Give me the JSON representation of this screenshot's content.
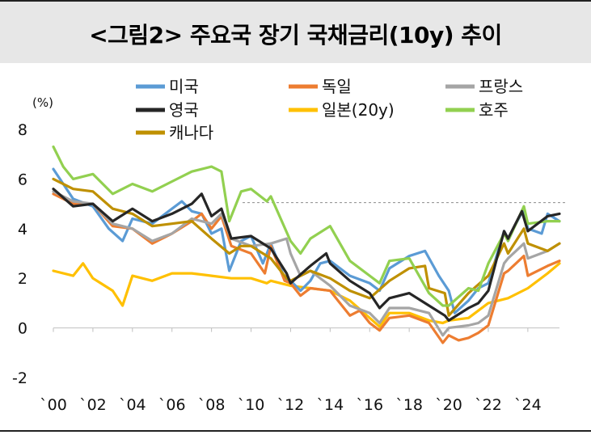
{
  "title": "<그림2> 주요국 장기 국채금리(10y) 추이",
  "chart_data": {
    "type": "line",
    "unit_label": "(%)",
    "x_tick_labels": [
      "`00",
      "`02",
      "`04",
      "`06",
      "`08",
      "`10",
      "`12",
      "`14",
      "`16",
      "`18",
      "`20",
      "`22",
      "`24"
    ],
    "x_range": [
      2000,
      2025.6
    ],
    "y_ticks": [
      8,
      6,
      4,
      2,
      0,
      -2
    ],
    "ylim": [
      -2,
      8
    ],
    "reference_line": 5.05,
    "legend_placement": "top",
    "grid": false,
    "series": [
      {
        "name": "미국",
        "color": "#5b9bd5",
        "x": [
          2000,
          2001,
          2002,
          2002.8,
          2003.5,
          2004,
          2005,
          2006,
          2006.5,
          2007,
          2007.5,
          2008,
          2008.5,
          2008.9,
          2009.5,
          2010,
          2010.6,
          2011,
          2011.7,
          2012,
          2012.5,
          2013,
          2013.5,
          2014,
          2015,
          2016,
          2016.5,
          2017,
          2018,
          2018.8,
          2019.5,
          2020,
          2020.3,
          2021,
          2021.5,
          2022,
          2022.8,
          2023,
          2023.8,
          2024,
          2024.7,
          2025,
          2025.6
        ],
        "y": [
          6.4,
          5.2,
          4.9,
          4.0,
          3.5,
          4.4,
          4.2,
          4.8,
          5.1,
          4.7,
          4.6,
          3.8,
          4.0,
          2.3,
          3.5,
          3.7,
          2.6,
          3.4,
          2.0,
          1.9,
          1.5,
          1.9,
          2.6,
          2.7,
          2.1,
          1.8,
          1.5,
          2.4,
          2.9,
          3.1,
          2.1,
          1.5,
          0.6,
          1.1,
          1.6,
          1.8,
          3.9,
          3.6,
          4.8,
          4.0,
          3.8,
          4.6,
          4.3
        ]
      },
      {
        "name": "독일",
        "color": "#ed7d31",
        "x": [
          2000,
          2001,
          2002,
          2003,
          2004,
          2005,
          2006,
          2007,
          2007.5,
          2008,
          2008.5,
          2009,
          2010,
          2010.7,
          2011,
          2011.7,
          2012,
          2012.5,
          2013,
          2014,
          2015,
          2015.5,
          2016,
          2016.5,
          2017,
          2018,
          2019,
          2019.7,
          2020,
          2020.5,
          2021,
          2021.5,
          2022,
          2022.8,
          2023,
          2023.8,
          2024,
          2025,
          2025.6
        ],
        "y": [
          5.4,
          5.0,
          5.0,
          4.1,
          4.0,
          3.4,
          3.8,
          4.3,
          4.6,
          4.0,
          4.5,
          3.3,
          3.0,
          2.2,
          3.3,
          1.9,
          1.8,
          1.3,
          1.6,
          1.5,
          0.5,
          0.7,
          0.2,
          -0.1,
          0.4,
          0.5,
          0.2,
          -0.6,
          -0.3,
          -0.5,
          -0.4,
          -0.2,
          0.1,
          2.2,
          2.3,
          2.9,
          2.1,
          2.5,
          2.7
        ]
      },
      {
        "name": "프랑스",
        "color": "#a5a5a5",
        "x": [
          2000,
          2001,
          2002,
          2003,
          2004,
          2005,
          2006,
          2007,
          2008,
          2008.5,
          2009,
          2010,
          2011,
          2011.8,
          2012,
          2012.5,
          2013,
          2014,
          2015,
          2016,
          2016.5,
          2017,
          2018,
          2019,
          2019.7,
          2020,
          2021,
          2021.5,
          2022,
          2022.8,
          2023,
          2023.8,
          2024,
          2025,
          2025.6
        ],
        "y": [
          5.5,
          5.1,
          5.0,
          4.2,
          4.0,
          3.5,
          3.8,
          4.4,
          4.2,
          4.6,
          3.6,
          3.3,
          3.4,
          3.6,
          3.0,
          2.1,
          2.3,
          1.7,
          0.9,
          0.6,
          0.2,
          0.8,
          0.8,
          0.6,
          -0.3,
          0.0,
          0.1,
          0.2,
          0.5,
          2.6,
          2.8,
          3.4,
          2.8,
          3.1,
          3.4
        ]
      },
      {
        "name": "영국",
        "color": "#262626",
        "x": [
          2000,
          2001,
          2002,
          2003,
          2004,
          2005,
          2006,
          2007,
          2007.5,
          2008,
          2008.5,
          2009,
          2010,
          2011,
          2011.8,
          2012,
          2013,
          2013.8,
          2014,
          2015,
          2016,
          2016.5,
          2017,
          2018,
          2019,
          2019.8,
          2020,
          2021,
          2021.5,
          2022,
          2022.8,
          2023,
          2023.7,
          2024,
          2025,
          2025.6
        ],
        "y": [
          5.6,
          4.9,
          5.0,
          4.3,
          4.8,
          4.3,
          4.6,
          5.0,
          5.4,
          4.5,
          4.8,
          3.6,
          3.7,
          3.2,
          2.2,
          1.8,
          2.5,
          3.0,
          2.6,
          1.9,
          1.4,
          0.8,
          1.2,
          1.4,
          0.9,
          0.5,
          0.3,
          0.8,
          1.0,
          1.5,
          3.9,
          3.6,
          4.7,
          3.9,
          4.5,
          4.6
        ]
      },
      {
        "name": "일본(20y)",
        "color": "#ffc000",
        "x": [
          2000,
          2001,
          2001.5,
          2002,
          2003,
          2003.5,
          2004,
          2005,
          2006,
          2007,
          2008,
          2009,
          2010,
          2010.8,
          2011,
          2012,
          2013,
          2014,
          2015,
          2016,
          2016.5,
          2017,
          2018,
          2019,
          2019.7,
          2020,
          2021,
          2022,
          2023,
          2024,
          2025,
          2025.6
        ],
        "y": [
          2.3,
          2.1,
          2.6,
          2.0,
          1.5,
          0.9,
          2.1,
          1.9,
          2.2,
          2.2,
          2.1,
          2.0,
          2.0,
          1.8,
          1.9,
          1.7,
          1.6,
          1.5,
          1.1,
          0.4,
          0.05,
          0.6,
          0.6,
          0.3,
          0.2,
          0.3,
          0.4,
          1.0,
          1.2,
          1.6,
          2.2,
          2.6
        ]
      },
      {
        "name": "호주",
        "color": "#92d050",
        "x": [
          2000,
          2000.5,
          2001,
          2002,
          2003,
          2004,
          2005,
          2006,
          2007,
          2008,
          2008.5,
          2008.9,
          2009.5,
          2010,
          2010.8,
          2011,
          2012,
          2012.5,
          2013,
          2014,
          2015,
          2016,
          2016.5,
          2017,
          2018,
          2019,
          2019.7,
          2020,
          2021,
          2021.5,
          2022,
          2022.8,
          2023,
          2023.8,
          2024,
          2025,
          2025.6
        ],
        "y": [
          7.3,
          6.5,
          6.0,
          6.2,
          5.4,
          5.8,
          5.5,
          5.9,
          6.3,
          6.5,
          6.3,
          4.3,
          5.5,
          5.6,
          5.1,
          5.3,
          3.5,
          3.0,
          3.6,
          4.1,
          2.7,
          2.1,
          1.8,
          2.7,
          2.8,
          1.4,
          0.9,
          0.9,
          1.6,
          1.5,
          2.6,
          3.8,
          3.5,
          4.9,
          4.2,
          4.3,
          4.3
        ]
      },
      {
        "name": "캐나다",
        "color": "#bf9000",
        "x": [
          2000,
          2001,
          2002,
          2003,
          2004,
          2005,
          2006,
          2007,
          2008,
          2008.9,
          2009.5,
          2010,
          2011,
          2011.8,
          2012,
          2013,
          2014,
          2015,
          2016,
          2017,
          2018,
          2018.8,
          2019,
          2019.8,
          2020,
          2021,
          2022,
          2022.8,
          2023,
          2023.8,
          2024,
          2025,
          2025.6
        ],
        "y": [
          6.0,
          5.6,
          5.5,
          4.8,
          4.6,
          4.1,
          4.2,
          4.3,
          3.6,
          3.0,
          3.3,
          3.3,
          2.8,
          2.0,
          1.9,
          2.3,
          2.0,
          1.5,
          1.2,
          1.9,
          2.4,
          2.5,
          1.6,
          1.4,
          0.5,
          1.4,
          2.1,
          3.4,
          3.0,
          4.0,
          3.4,
          3.1,
          3.4
        ]
      }
    ]
  }
}
